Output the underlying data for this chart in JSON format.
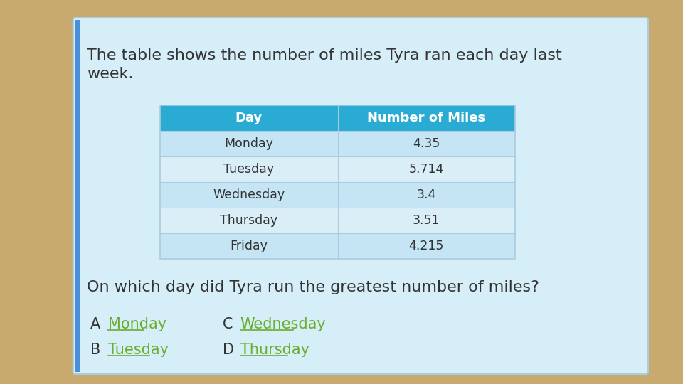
{
  "bg_color": "#C8A96E",
  "card_color": "#D6EEF8",
  "title_text": "The table shows the number of miles Tyra ran each day last\nweek.",
  "header_bg": "#29ABD4",
  "header_text_color": "#FFFFFF",
  "header_col1": "Day",
  "header_col2": "Number of Miles",
  "row_colors_alt": [
    "#C5E5F5",
    "#DAEEF8"
  ],
  "rows": [
    [
      "Monday",
      "4.35"
    ],
    [
      "Tuesday",
      "5.714"
    ],
    [
      "Wednesday",
      "3.4"
    ],
    [
      "Thursday",
      "3.51"
    ],
    [
      "Friday",
      "4.215"
    ]
  ],
  "question_text": "On which day did Tyra run the greatest number of miles?",
  "answers": [
    [
      "A",
      "Monday",
      "C",
      "Wednesday"
    ],
    [
      "B",
      "Tuesday",
      "D",
      "Thursday"
    ]
  ],
  "answer_label_color": "#333333",
  "answer_text_color": "#6AAD2E",
  "left_bar_color": "#4A90D9",
  "table_text_color": "#333333",
  "title_text_color": "#333333"
}
